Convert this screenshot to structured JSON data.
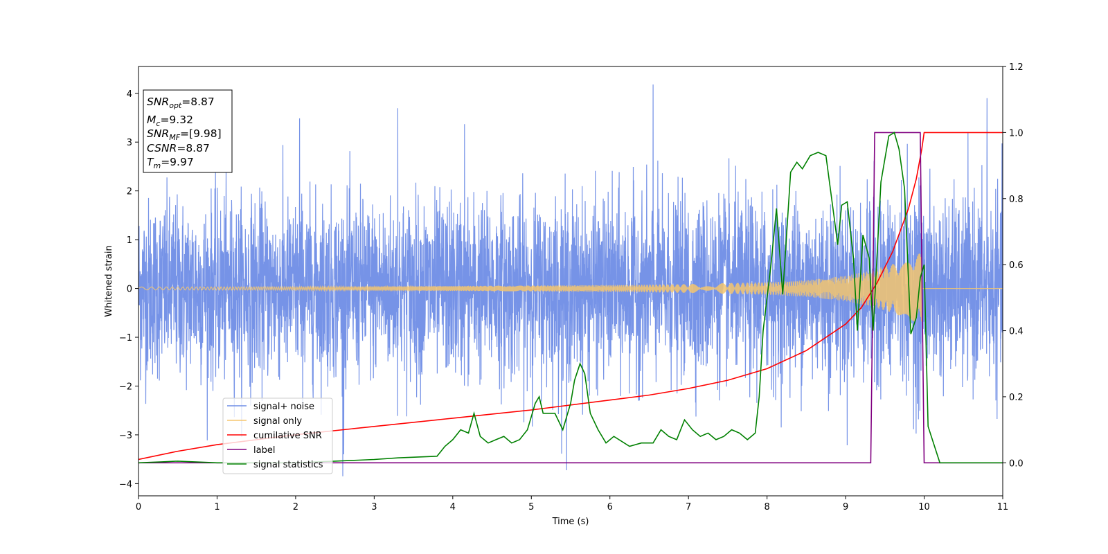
{
  "chart_data": {
    "type": "line",
    "xlabel": "Time (s)",
    "ylabel_left": "Whitened strain",
    "ylabel_right": "",
    "xlim": [
      0,
      11
    ],
    "ylim_left": [
      -4.25,
      4.55
    ],
    "ylim_right": [
      -0.1,
      1.2
    ],
    "xticks": [
      "0",
      "1",
      "2",
      "3",
      "4",
      "5",
      "6",
      "7",
      "8",
      "9",
      "10",
      "11"
    ],
    "yticks_left": [
      "−4",
      "−3",
      "−2",
      "−1",
      "0",
      "1",
      "2",
      "3",
      "4"
    ],
    "yticks_right": [
      "0.0",
      "0.2",
      "0.4",
      "0.6",
      "0.8",
      "1.0",
      "1.2"
    ],
    "grid": false,
    "legend_position": "lower-left",
    "info_box": {
      "snr_opt": {
        "name": "SNR",
        "sub": "opt",
        "value": "=8.87"
      },
      "mc": {
        "name": "M",
        "sub": "c",
        "value": "=9.32"
      },
      "snr_mf": {
        "name": "SNR",
        "sub": "MF",
        "value": "=[9.98]"
      },
      "csnr": {
        "name": "CSNR",
        "value": "=8.87"
      },
      "tm": {
        "name": "T",
        "sub": "m",
        "value": "=9.97"
      }
    },
    "series": [
      {
        "name": "signal+ noise",
        "color": "#6f8de6",
        "axis": "left",
        "description_values": {
          "typical_range": [
            -2.0,
            2.0
          ],
          "max_spike": 4.15,
          "min_spike": -3.85,
          "spikes": [
            [
              6.55,
              4.15
            ],
            [
              10.8,
              3.9
            ],
            [
              2.6,
              -3.85
            ],
            [
              5.45,
              -3.75
            ],
            [
              3.3,
              3.65
            ],
            [
              2.05,
              3.5
            ],
            [
              4.15,
              3.35
            ]
          ]
        }
      },
      {
        "name": "signal only",
        "color": "#f5c56e",
        "axis": "left",
        "envelope": [
          [
            0,
            0.03
          ],
          [
            2,
            0.035
          ],
          [
            4,
            0.05
          ],
          [
            6,
            0.07
          ],
          [
            7,
            0.09
          ],
          [
            8,
            0.13
          ],
          [
            8.5,
            0.17
          ],
          [
            9,
            0.26
          ],
          [
            9.3,
            0.36
          ],
          [
            9.6,
            0.5
          ],
          [
            9.85,
            0.66
          ],
          [
            9.97,
            0.74
          ],
          [
            9.98,
            0.0
          ],
          [
            11,
            0.0
          ]
        ]
      },
      {
        "name": "cumilative SNR",
        "color": "#ff0000",
        "axis": "right",
        "x": [
          0,
          0.5,
          1,
          2,
          3,
          4,
          5,
          6,
          6.5,
          7,
          7.5,
          8,
          8.5,
          9,
          9.2,
          9.4,
          9.6,
          9.8,
          9.9,
          9.97,
          10,
          11
        ],
        "y": [
          0.01,
          0.035,
          0.055,
          0.085,
          0.11,
          0.135,
          0.16,
          0.19,
          0.205,
          0.225,
          0.25,
          0.285,
          0.34,
          0.42,
          0.47,
          0.545,
          0.64,
          0.77,
          0.86,
          0.95,
          1.0,
          1.0
        ]
      },
      {
        "name": "label",
        "color": "#800080",
        "axis": "right",
        "x": [
          0,
          9.32,
          9.37,
          9.95,
          10.0,
          11
        ],
        "y": [
          0,
          0,
          1,
          1,
          0,
          0
        ]
      },
      {
        "name": "signal statistics",
        "color": "#008000",
        "axis": "right",
        "x": [
          0,
          0.3,
          0.5,
          1,
          1.5,
          2,
          2.5,
          2.8,
          3,
          3.3,
          3.8,
          3.9,
          4,
          4.1,
          4.2,
          4.27,
          4.35,
          4.45,
          4.55,
          4.65,
          4.75,
          4.85,
          4.95,
          5.05,
          5.1,
          5.15,
          5.3,
          5.4,
          5.5,
          5.55,
          5.62,
          5.68,
          5.75,
          5.85,
          5.95,
          6.05,
          6.25,
          6.4,
          6.55,
          6.65,
          6.75,
          6.85,
          6.95,
          7.05,
          7.15,
          7.25,
          7.35,
          7.45,
          7.55,
          7.65,
          7.75,
          7.85,
          7.9,
          7.95,
          8.05,
          8.12,
          8.2,
          8.3,
          8.38,
          8.45,
          8.55,
          8.65,
          8.75,
          8.85,
          8.9,
          8.95,
          9.02,
          9.1,
          9.15,
          9.22,
          9.3,
          9.35,
          9.45,
          9.55,
          9.62,
          9.68,
          9.75,
          9.83,
          9.9,
          9.95,
          10.0,
          10.05,
          10.2,
          10.5,
          11
        ],
        "y": [
          0,
          0.003,
          0.005,
          0,
          0,
          0,
          0.005,
          0.008,
          0.01,
          0.015,
          0.02,
          0.05,
          0.07,
          0.1,
          0.09,
          0.15,
          0.08,
          0.06,
          0.07,
          0.08,
          0.06,
          0.07,
          0.1,
          0.18,
          0.2,
          0.15,
          0.15,
          0.1,
          0.18,
          0.25,
          0.3,
          0.27,
          0.15,
          0.1,
          0.06,
          0.08,
          0.05,
          0.06,
          0.06,
          0.1,
          0.08,
          0.07,
          0.13,
          0.1,
          0.08,
          0.09,
          0.07,
          0.08,
          0.1,
          0.09,
          0.07,
          0.09,
          0.2,
          0.4,
          0.6,
          0.77,
          0.51,
          0.88,
          0.91,
          0.89,
          0.93,
          0.94,
          0.93,
          0.75,
          0.66,
          0.78,
          0.79,
          0.62,
          0.4,
          0.69,
          0.62,
          0.4,
          0.85,
          0.99,
          1.0,
          0.95,
          0.83,
          0.39,
          0.44,
          0.56,
          0.6,
          0.11,
          0.0,
          0.0,
          0.0
        ]
      }
    ]
  }
}
